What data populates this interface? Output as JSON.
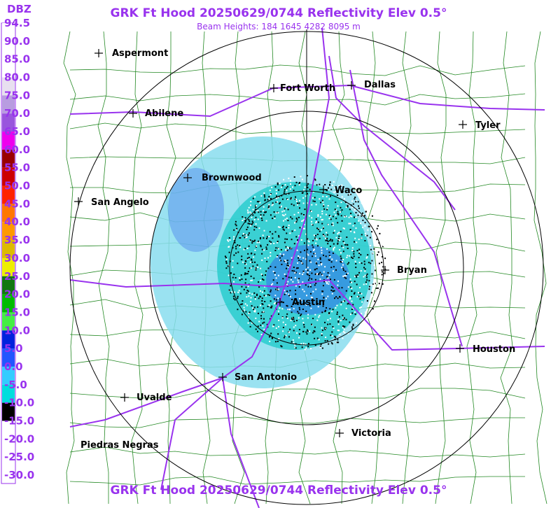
{
  "header": {
    "title": "GRK Ft Hood 20250629/0744 Reflectivity Elev 0.5°",
    "subtitle": "Beam Heights: 184 1645 4282 8095 m"
  },
  "footer": {
    "title": "GRK Ft Hood 20250629/0744 Reflectivity Elev 0.5°"
  },
  "colorbar": {
    "unit": "DBZ",
    "labels": [
      "94.5",
      "90.0",
      "85.0",
      "80.0",
      "75.0",
      "70.0",
      "65.0",
      "60.0",
      "55.0",
      "50.0",
      "45.0",
      "40.0",
      "35.0",
      "30.0",
      "25.0",
      "20.0",
      "15.0",
      "10.0",
      "5.0",
      "0.0",
      "-5.0",
      "-10.0",
      "-15.0",
      "-20.0",
      "-25.0",
      "-30.0"
    ],
    "colors": [
      "#ffffff",
      "#ffffff",
      "#ffffff",
      "#e8e0f0",
      "#b89ce0",
      "#9955dd",
      "#ee00ee",
      "#990000",
      "#cc0000",
      "#ff2200",
      "#ff7700",
      "#ff9900",
      "#ddbb00",
      "#eeee00",
      "#117711",
      "#00bb00",
      "#44ee44",
      "#0022dd",
      "#2255ff",
      "#33ccff",
      "#00dddd",
      "#000000",
      "#ffffff",
      "#ffffff",
      "#ffffff"
    ]
  },
  "cities": [
    "Aspermont",
    "Fort Worth",
    "Dallas",
    "Abilene",
    "Tyler",
    "Brownwood",
    "Waco",
    "San Angelo",
    "Bryan",
    "Austin",
    "Houston",
    "San Antonio",
    "Uvalde",
    "Victoria",
    "Piedras Negras"
  ]
}
